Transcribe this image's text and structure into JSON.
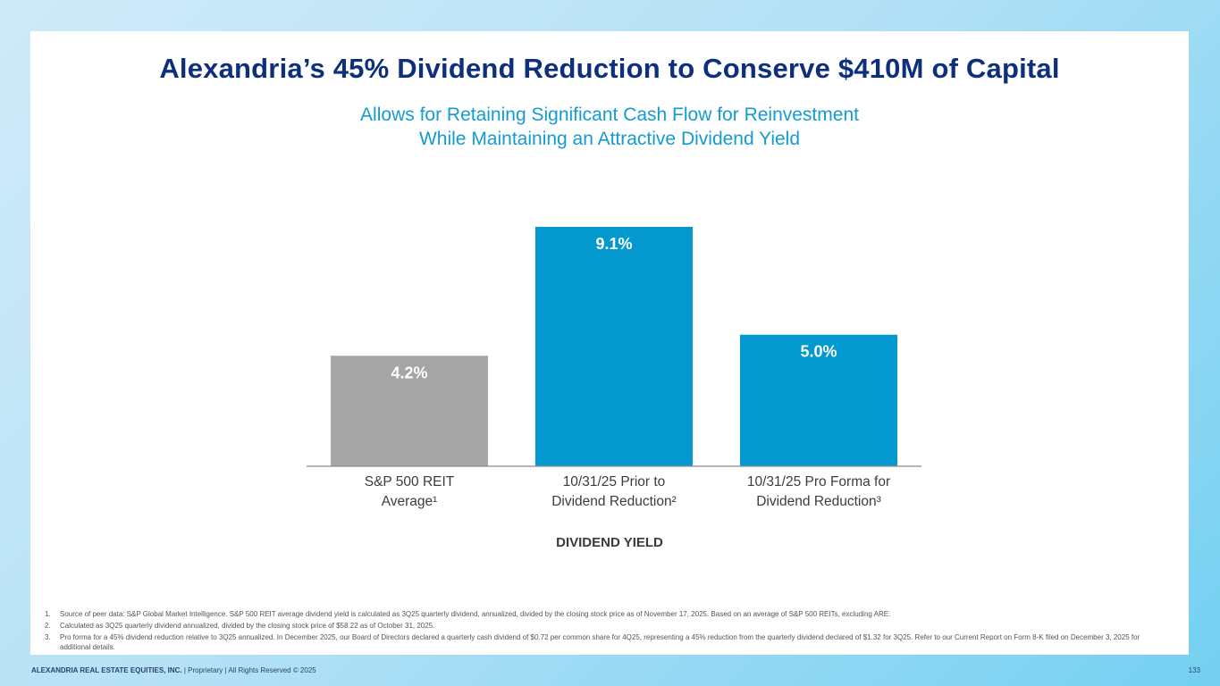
{
  "slide": {
    "title": "Alexandria’s 45% Dividend Reduction to Conserve $410M of Capital",
    "subtitle_line1": "Allows for Retaining Significant Cash Flow for Reinvestment",
    "subtitle_line2": "While Maintaining an Attractive Dividend Yield"
  },
  "chart_data": {
    "type": "bar",
    "title": "",
    "xlabel": "DIVIDEND YIELD",
    "ylabel": "",
    "ylim": [
      0,
      9.1
    ],
    "categories": [
      [
        "S&P 500 REIT",
        "Average¹"
      ],
      [
        "10/31/25 Prior to",
        "Dividend Reduction²"
      ],
      [
        "10/31/25 Pro Forma for",
        "Dividend Reduction³"
      ]
    ],
    "values": [
      4.2,
      9.1,
      5.0
    ],
    "labels": [
      "4.2%",
      "9.1%",
      "5.0%"
    ],
    "colors": [
      "#a5a5a5",
      "#0399cf",
      "#0399cf"
    ],
    "grid": false,
    "legend": "none"
  },
  "footnotes": [
    {
      "num": "1.",
      "text": "Source of peer data: S&P Global Market Intelligence. S&P 500 REIT average dividend yield is calculated as 3Q25 quarterly dividend, annualized, divided by the closing stock price as of November 17, 2025. Based on an average of S&P 500 REITs, excluding ARE."
    },
    {
      "num": "2.",
      "text": "Calculated as 3Q25 quarterly dividend annualized, divided by the closing stock price of $58.22 as of October 31, 2025."
    },
    {
      "num": "3.",
      "text": "Pro forma for a 45% dividend reduction relative to 3Q25 annualized. In December 2025, our Board of Directors declared a quarterly cash dividend of $0.72 per common share for 4Q25, representing a 45% reduction from the quarterly dividend declared of $1.32 for 3Q25.  Refer to our Current Report on Form 8-K filed on December 3, 2025 for additional details."
    }
  ],
  "footer": {
    "company": "ALEXANDRIA REAL ESTATE EQUITIES, INC.",
    "rights": " | Proprietary | All Rights Reserved © 2025",
    "page_number": "133"
  }
}
